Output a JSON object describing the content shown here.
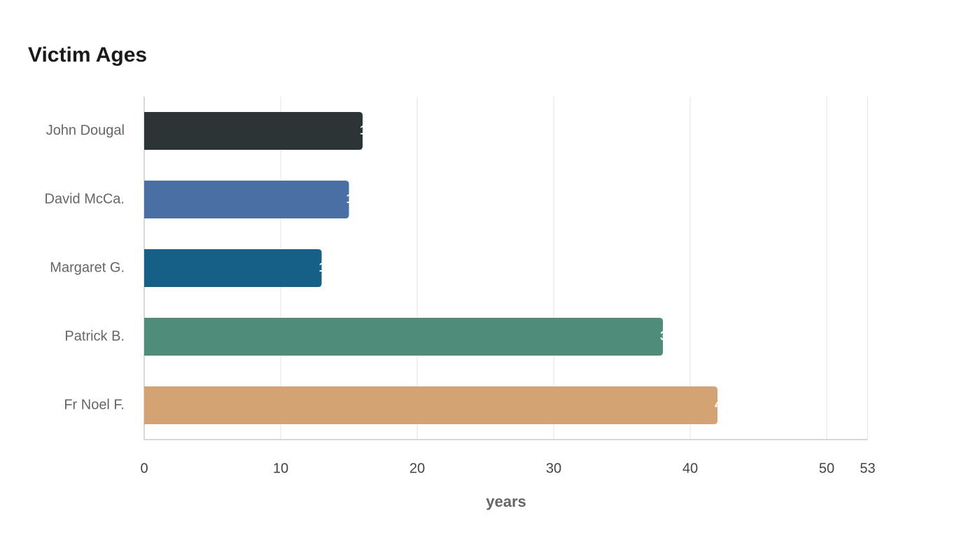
{
  "chart_data": {
    "type": "bar",
    "orientation": "horizontal",
    "title": "Victim Ages",
    "categories": [
      "John Dougal",
      "David McCa.",
      "Margaret G.",
      "Patrick B.",
      "Fr Noel F."
    ],
    "values": [
      16,
      15,
      13,
      38,
      42
    ],
    "colors": [
      "#2d3436",
      "#4a6fa5",
      "#166088",
      "#4f8c7a",
      "#d4a373"
    ],
    "x_label": "years",
    "xlim": [
      0,
      53
    ],
    "xticks": [
      0,
      10,
      20,
      30,
      40,
      50,
      53
    ],
    "grid": true
  }
}
